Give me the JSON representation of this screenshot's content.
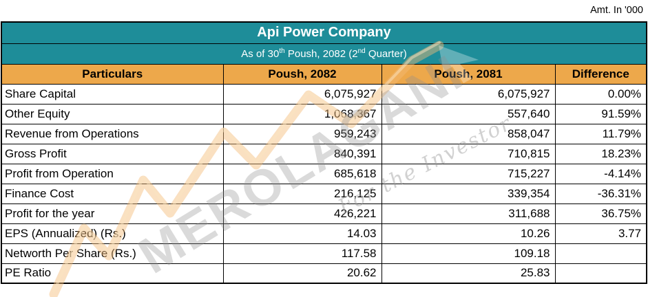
{
  "note": "Amt. In '000",
  "table": {
    "title": "Api Power Company",
    "subtitle": {
      "p1": "As of 30",
      "sup1": "th",
      "p2": " Poush, 2082 (2",
      "sup2": "nd",
      "p3": " Quarter)"
    },
    "columns": [
      "Particulars",
      "Poush, 2082",
      "Poush, 2081",
      "Difference"
    ],
    "rows": [
      {
        "particulars": "Share Capital",
        "p2082": "6,075,927",
        "p2081": "6,075,927",
        "diff": "0.00%"
      },
      {
        "particulars": "Other Equity",
        "p2082": "1,068,367",
        "p2081": "557,640",
        "diff": "91.59%"
      },
      {
        "particulars": "Revenue from Operations",
        "p2082": "959,243",
        "p2081": "858,047",
        "diff": "11.79%"
      },
      {
        "particulars": "Gross Profit",
        "p2082": "840,391",
        "p2081": "710,815",
        "diff": "18.23%"
      },
      {
        "particulars": "Profit from Operation",
        "p2082": "685,618",
        "p2081": "715,227",
        "diff": "-4.14%"
      },
      {
        "particulars": "Finance Cost",
        "p2082": "216,125",
        "p2081": "339,354",
        "diff": "-36.31%"
      },
      {
        "particulars": "Profit for the year",
        "p2082": "426,221",
        "p2081": "311,688",
        "diff": "36.75%"
      },
      {
        "particulars": "EPS (Annualized) (Rs.)",
        "p2082": "14.03",
        "p2081": "10.26",
        "diff": "3.77"
      },
      {
        "particulars": "Networth Per Share (Rs.)",
        "p2082": "117.58",
        "p2081": "109.18",
        "diff": ""
      },
      {
        "particulars": "PE Ratio",
        "p2082": "20.62",
        "p2081": "25.83",
        "diff": ""
      }
    ]
  },
  "watermark": {
    "brand": "MEROLAGANI",
    "tagline": "For the Investor"
  },
  "colors": {
    "teal": "#1E8D99",
    "orange": "#EDA84B",
    "watermark_orange": "#F3BA75",
    "border": "#000000"
  }
}
